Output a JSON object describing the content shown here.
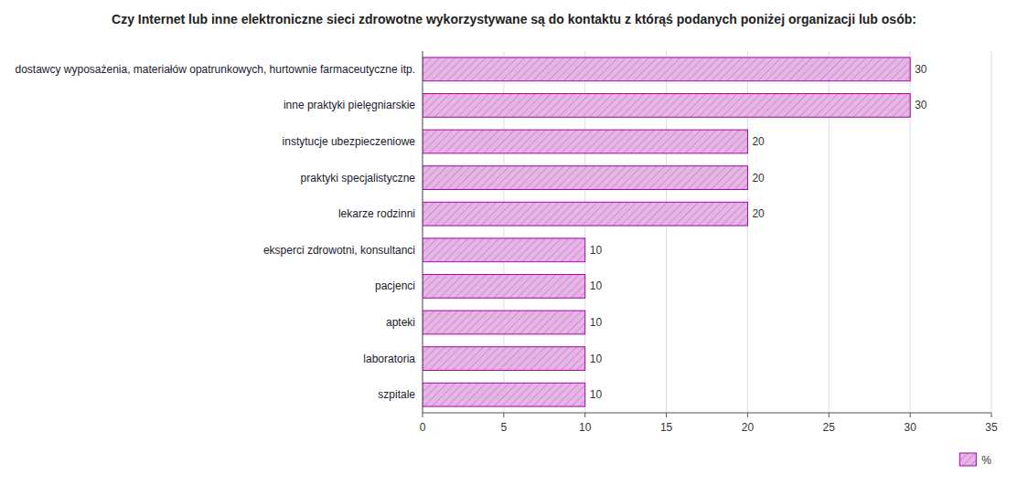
{
  "chart_data": {
    "type": "bar",
    "orientation": "horizontal",
    "title": "Czy Internet lub inne elektroniczne sieci zdrowotne wykorzystywane są do kontaktu z którąś podanych poniżej organizacji lub osób:",
    "categories": [
      "dostawcy wyposażenia, materiałów opatrunkowych, hurtownie farmaceutyczne itp.",
      "inne praktyki pielęgniarskie",
      "instytucje ubezpieczeniowe",
      "praktyki specjalistyczne",
      "lekarze rodzinni",
      "eksperci zdrowotni, konsultanci",
      "pacjenci",
      "apteki",
      "laboratoria",
      "szpitale"
    ],
    "series": [
      {
        "name": "%",
        "color": "#e8b4e8",
        "values": [
          30,
          30,
          20,
          20,
          20,
          10,
          10,
          10,
          10,
          10
        ]
      }
    ],
    "xlim": [
      0,
      35
    ],
    "xticks": [
      0,
      5,
      10,
      15,
      20,
      25,
      30,
      35
    ],
    "grid": true,
    "data_labels": true,
    "legend": "lower right"
  }
}
